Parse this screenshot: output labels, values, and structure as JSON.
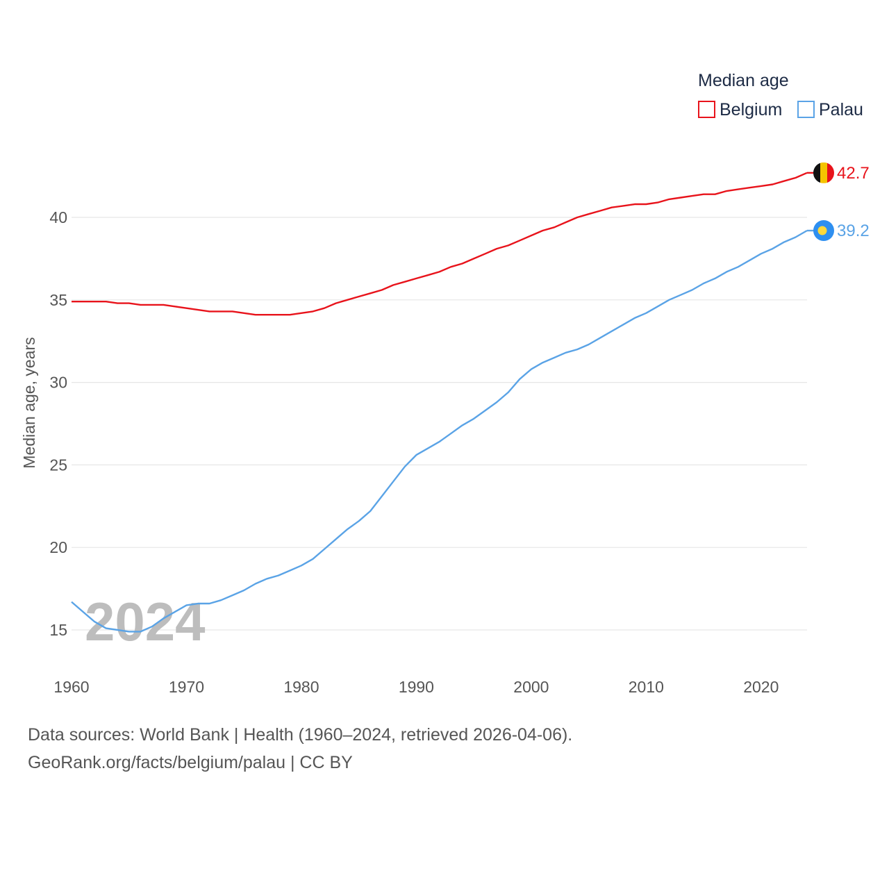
{
  "chart_data": {
    "type": "line",
    "ylabel": "Median age, years",
    "xlabel": "",
    "legend_title": "Median age",
    "legend_position": "top-right",
    "x_ticks": [
      1960,
      1970,
      1980,
      1990,
      2000,
      2010,
      2020
    ],
    "y_ticks": [
      15,
      20,
      25,
      30,
      35,
      40
    ],
    "xlim": [
      1960,
      2024
    ],
    "ylim": [
      12.5,
      44
    ],
    "grid": true,
    "current_year_label": "2024",
    "series": [
      {
        "name": "Belgium",
        "color": "#e8131b",
        "end_label": "42.7",
        "flag": "belgium-flag",
        "x": [
          1960,
          1961,
          1962,
          1963,
          1964,
          1965,
          1966,
          1967,
          1968,
          1969,
          1970,
          1971,
          1972,
          1973,
          1974,
          1975,
          1976,
          1977,
          1978,
          1979,
          1980,
          1981,
          1982,
          1983,
          1984,
          1985,
          1986,
          1987,
          1988,
          1989,
          1990,
          1991,
          1992,
          1993,
          1994,
          1995,
          1996,
          1997,
          1998,
          1999,
          2000,
          2001,
          2002,
          2003,
          2004,
          2005,
          2006,
          2007,
          2008,
          2009,
          2010,
          2011,
          2012,
          2013,
          2014,
          2015,
          2016,
          2017,
          2018,
          2019,
          2020,
          2021,
          2022,
          2023,
          2024
        ],
        "values": [
          34.9,
          34.9,
          34.9,
          34.9,
          34.8,
          34.8,
          34.7,
          34.7,
          34.7,
          34.6,
          34.5,
          34.4,
          34.3,
          34.3,
          34.3,
          34.2,
          34.1,
          34.1,
          34.1,
          34.1,
          34.2,
          34.3,
          34.5,
          34.8,
          35.0,
          35.2,
          35.4,
          35.6,
          35.9,
          36.1,
          36.3,
          36.5,
          36.7,
          37.0,
          37.2,
          37.5,
          37.8,
          38.1,
          38.3,
          38.6,
          38.9,
          39.2,
          39.4,
          39.7,
          40.0,
          40.2,
          40.4,
          40.6,
          40.7,
          40.8,
          40.8,
          40.9,
          41.1,
          41.2,
          41.3,
          41.4,
          41.4,
          41.6,
          41.7,
          41.8,
          41.9,
          42.0,
          42.2,
          42.4,
          42.7
        ]
      },
      {
        "name": "Palau",
        "color": "#5aa3e6",
        "end_label": "39.2",
        "flag": "palau-flag",
        "x": [
          1960,
          1961,
          1962,
          1963,
          1964,
          1965,
          1966,
          1967,
          1968,
          1969,
          1970,
          1971,
          1972,
          1973,
          1974,
          1975,
          1976,
          1977,
          1978,
          1979,
          1980,
          1981,
          1982,
          1983,
          1984,
          1985,
          1986,
          1987,
          1988,
          1989,
          1990,
          1991,
          1992,
          1993,
          1994,
          1995,
          1996,
          1997,
          1998,
          1999,
          2000,
          2001,
          2002,
          2003,
          2004,
          2005,
          2006,
          2007,
          2008,
          2009,
          2010,
          2011,
          2012,
          2013,
          2014,
          2015,
          2016,
          2017,
          2018,
          2019,
          2020,
          2021,
          2022,
          2023,
          2024
        ],
        "values": [
          16.7,
          16.1,
          15.5,
          15.1,
          15.0,
          14.9,
          14.9,
          15.2,
          15.7,
          16.1,
          16.5,
          16.6,
          16.6,
          16.8,
          17.1,
          17.4,
          17.8,
          18.1,
          18.3,
          18.6,
          18.9,
          19.3,
          19.9,
          20.5,
          21.1,
          21.6,
          22.2,
          23.1,
          24.0,
          24.9,
          25.6,
          26.0,
          26.4,
          26.9,
          27.4,
          27.8,
          28.3,
          28.8,
          29.4,
          30.2,
          30.8,
          31.2,
          31.5,
          31.8,
          32.0,
          32.3,
          32.7,
          33.1,
          33.5,
          33.9,
          34.2,
          34.6,
          35.0,
          35.3,
          35.6,
          36.0,
          36.3,
          36.7,
          37.0,
          37.4,
          37.8,
          38.1,
          38.5,
          38.8,
          39.2
        ]
      }
    ]
  },
  "source": {
    "line1": "Data sources: World Bank | Health (1960–2024, retrieved 2026-04-06).",
    "line2": "GeoRank.org/facts/belgium/palau | CC BY"
  }
}
